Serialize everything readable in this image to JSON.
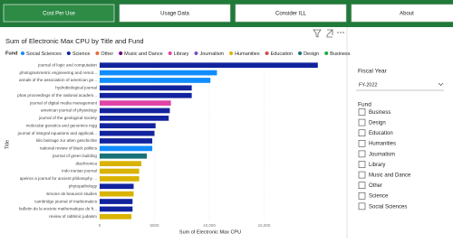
{
  "tabs": [
    "Cost Per Use",
    "Usage Data",
    "Consider ILL",
    "About"
  ],
  "chart_data": {
    "type": "bar",
    "orientation": "horizontal",
    "title": "Sum of Electronic Max CPU by Title and Fund",
    "legend_title": "Fund",
    "legend": [
      {
        "name": "Social Sciences",
        "color": "#118dff"
      },
      {
        "name": "Science",
        "color": "#12239e"
      },
      {
        "name": "Other",
        "color": "#e66c37"
      },
      {
        "name": "Music and Dance",
        "color": "#6b007b"
      },
      {
        "name": "Library",
        "color": "#e044a7"
      },
      {
        "name": "Journalism",
        "color": "#744ec2"
      },
      {
        "name": "Humanities",
        "color": "#d9b300"
      },
      {
        "name": "Education",
        "color": "#d64550"
      },
      {
        "name": "Design",
        "color": "#197278"
      },
      {
        "name": "Business",
        "color": "#1aab40"
      }
    ],
    "categories": [
      "journal of logic and computation",
      "photogrammetric engineering and remot...",
      "annals of the association of american ge...",
      "hydrobiological journal",
      "phas proceedings of the national academ...",
      "journal of digital media management",
      "american journal of physiology",
      "journal of the geological society",
      "molecular genetics and genomics mgg",
      "journal of integral equations and applicati...",
      "klio beitrage zur alten geschichte",
      "national review of black politics",
      "journal of green building",
      "diachronica",
      "indo iranian journal",
      "apeiron a journal for ancient philosophy ...",
      "phytopathology",
      "simone de beauvoir studies",
      "cambridge journal of mathematics",
      "bulletin de la societe mathematique de fr...",
      "review of rabbinic judaism"
    ],
    "values": [
      19900,
      10700,
      10100,
      8400,
      8400,
      6500,
      6400,
      6300,
      5100,
      5000,
      4800,
      4800,
      4300,
      3800,
      3600,
      3600,
      3100,
      3100,
      3000,
      3000,
      2900
    ],
    "colors": [
      "#12239e",
      "#118dff",
      "#118dff",
      "#12239e",
      "#12239e",
      "#e044a7",
      "#12239e",
      "#12239e",
      "#12239e",
      "#12239e",
      "#12239e",
      "#118dff",
      "#197278",
      "#d9b300",
      "#d9b300",
      "#d9b300",
      "#12239e",
      "#d9b300",
      "#12239e",
      "#12239e",
      "#d9b300"
    ],
    "x_label": "Sum of Electronic Max CPU",
    "y_label": "Title",
    "xlim": [
      0,
      20000
    ],
    "xticks": [
      0,
      5000,
      {
        "value": 10000,
        "label": "10,000"
      },
      {
        "value": 15000,
        "label": "15,000"
      }
    ],
    "grid": true
  },
  "slicers": {
    "fiscal_year": {
      "title": "Fiscal Year",
      "selected": "FY-2022"
    },
    "fund": {
      "title": "Fund",
      "items": [
        "Business",
        "Design",
        "Education",
        "Humanities",
        "Journalism",
        "Library",
        "Music and Dance",
        "Other",
        "Science",
        "Social Sciences"
      ]
    }
  }
}
